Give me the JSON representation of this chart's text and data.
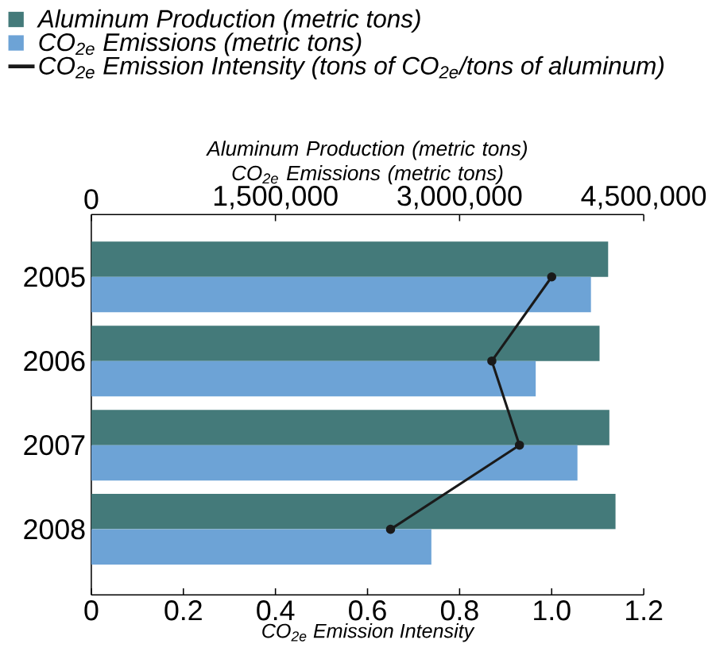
{
  "chart_data": {
    "type": "bar",
    "orientation": "horizontal",
    "categories": [
      "2005",
      "2006",
      "2007",
      "2008"
    ],
    "series": [
      {
        "name": "Aluminum Production (metric tons)",
        "color": "#447a7a",
        "axis": "x2",
        "values": [
          4210000,
          4140000,
          4220000,
          4270000
        ]
      },
      {
        "name": "CO$_{2e}$ Emissions (metric tons)",
        "color": "#6da3d6",
        "axis": "x2",
        "values": [
          4070000,
          3620000,
          3960000,
          2770000
        ]
      },
      {
        "name": "CO$_{2e}$ Emission Intensity (tons of CO$_{2e}$/tons of aluminum)",
        "type": "line",
        "color": "#1a1a1a",
        "marker": "circle",
        "values": [
          1.0,
          0.87,
          0.93,
          0.65
        ]
      }
    ],
    "xlim": [
      0,
      1.2
    ],
    "xticks": [
      0,
      0.2,
      0.4,
      0.6,
      0.8,
      {
        "value": 1,
        "label": "1.0"
      },
      1.2
    ],
    "xlabel": "CO$_{2e}$ Emission Intensity",
    "x2lim": [
      0,
      4500000
    ],
    "x2ticks": [
      0,
      {
        "value": 1500000,
        "label": "1,500,000"
      },
      {
        "value": 3000000,
        "label": "3,000,000"
      },
      {
        "value": 4500000,
        "label": "4,500,000"
      }
    ],
    "x2label": "Aluminum Production (metric tons) CO$_{2e}$ Emissions (metric tons)",
    "legend": "top left"
  }
}
